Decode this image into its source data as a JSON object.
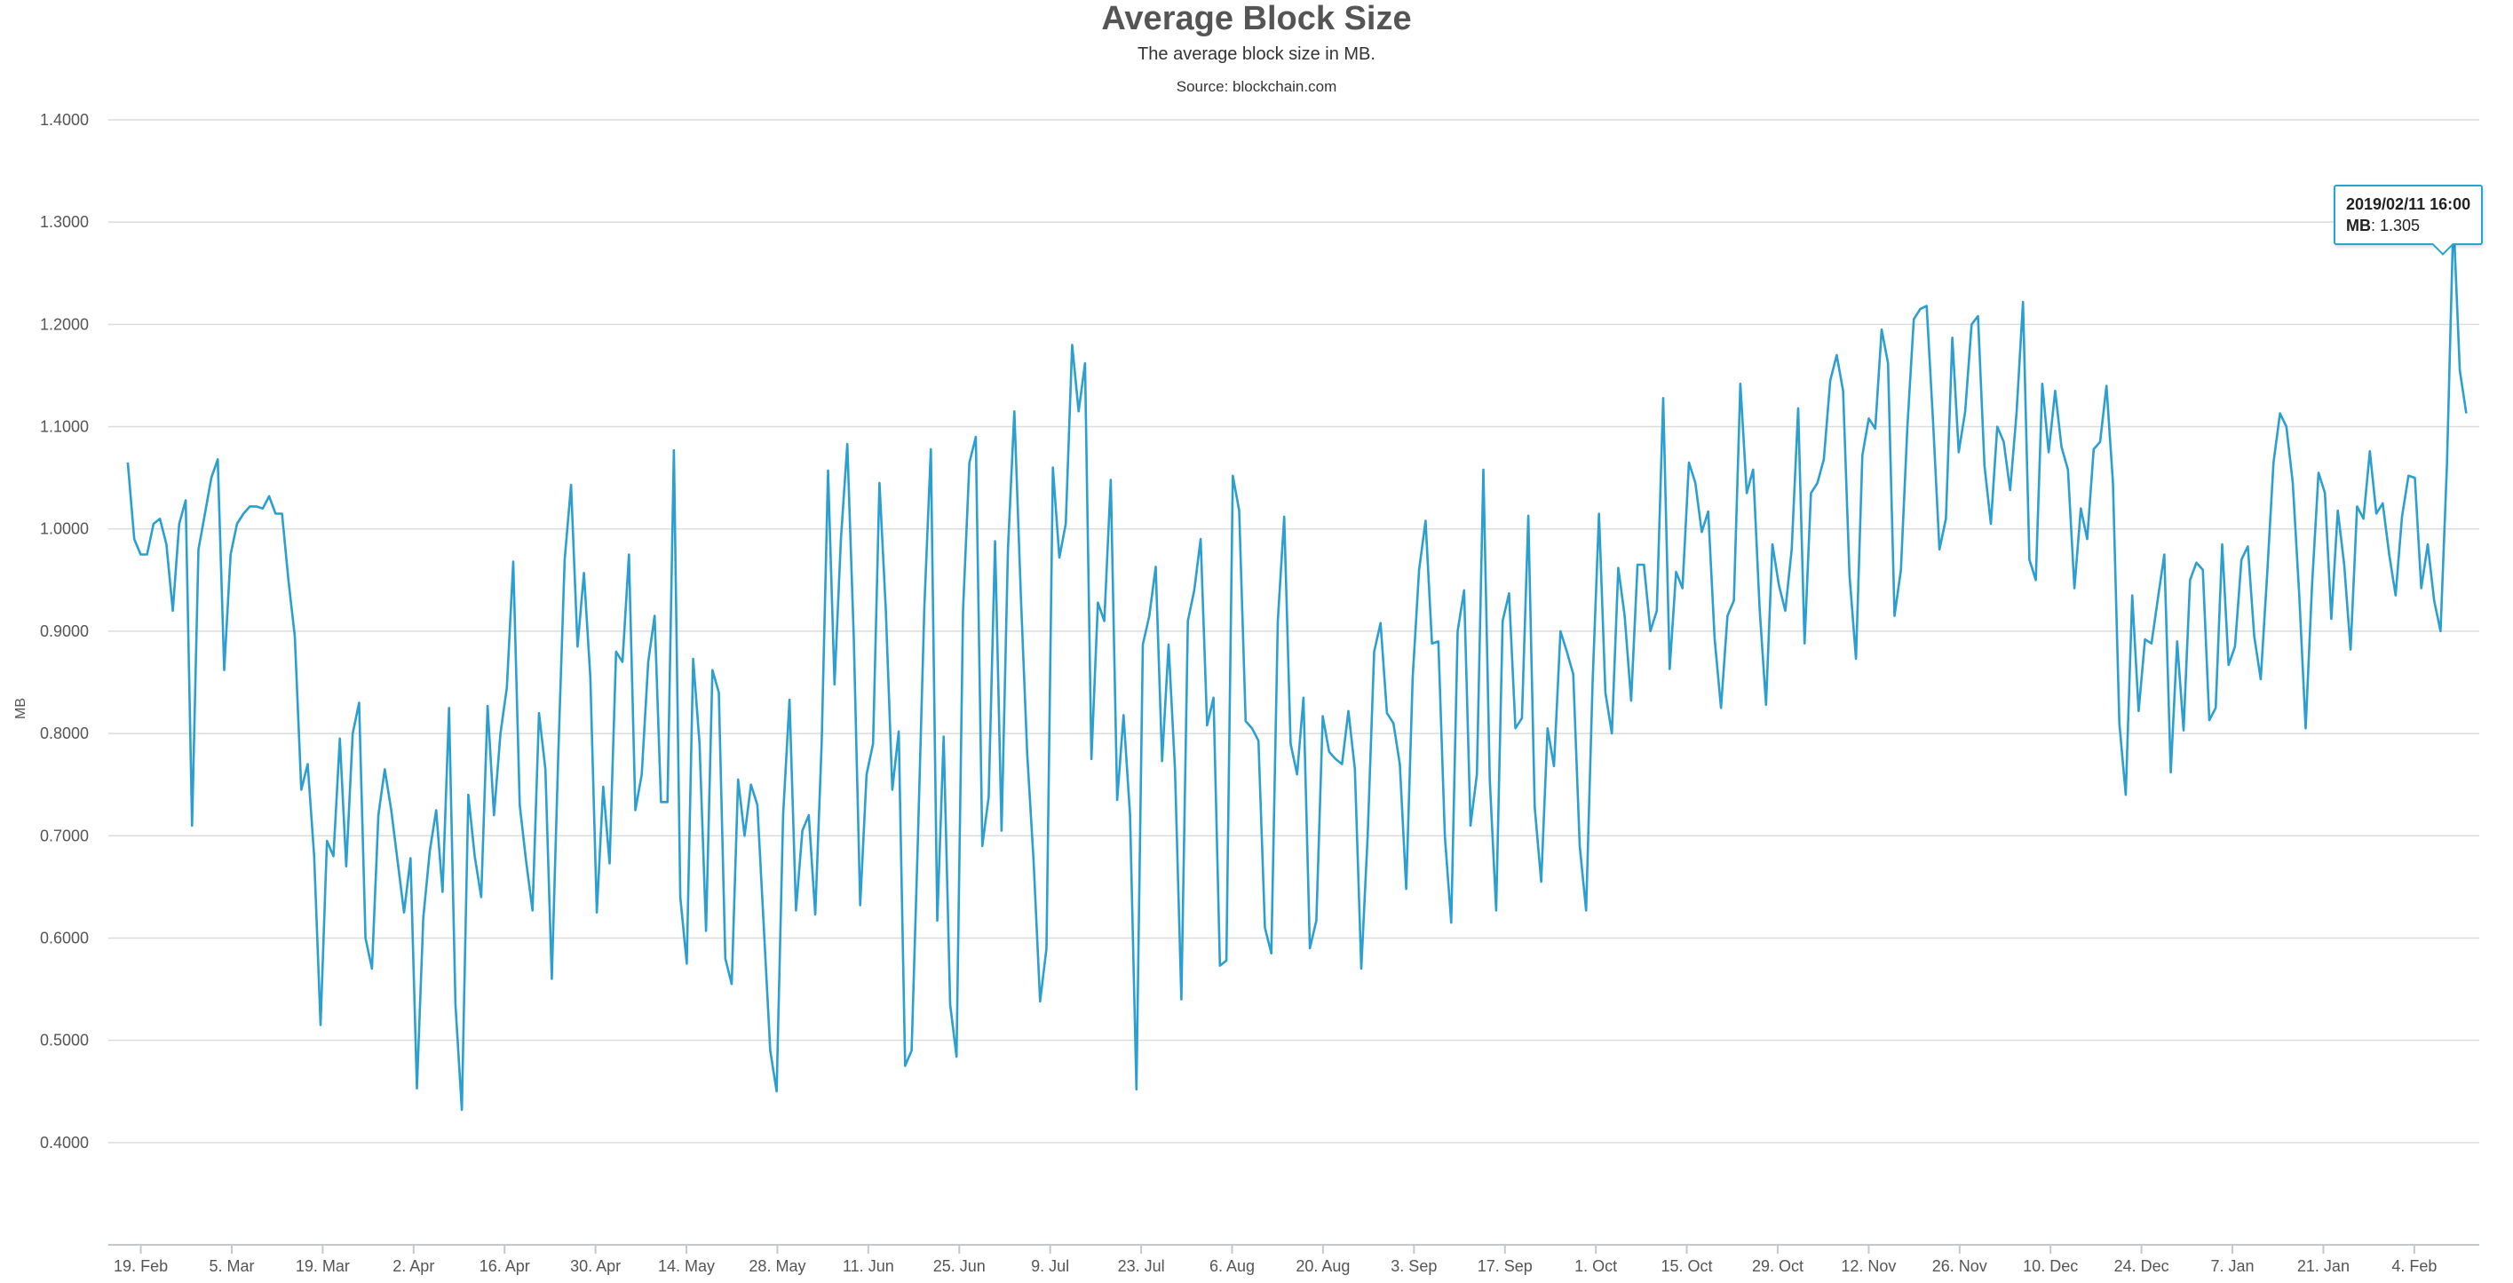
{
  "chart_data": {
    "type": "line",
    "title": "Average Block Size",
    "subtitle": "The average block size in MB.",
    "source": "Source: blockchain.com",
    "ylabel": "MB",
    "xlabel": "",
    "ylim": [
      0.3,
      1.4
    ],
    "yticks": [
      {
        "value": 0.4,
        "label": "0.4000"
      },
      {
        "value": 0.5,
        "label": "0.5000"
      },
      {
        "value": 0.6,
        "label": "0.6000"
      },
      {
        "value": 0.7,
        "label": "0.7000"
      },
      {
        "value": 0.8,
        "label": "0.8000"
      },
      {
        "value": 0.9,
        "label": "0.9000"
      },
      {
        "value": 1.0,
        "label": "1.0000"
      },
      {
        "value": 1.1,
        "label": "1.1000"
      },
      {
        "value": 1.2,
        "label": "1.2000"
      },
      {
        "value": 1.3,
        "label": "1.3000"
      },
      {
        "value": 1.4,
        "label": "1.4000"
      }
    ],
    "xlim": [
      "2018-02-14",
      "2019-02-14"
    ],
    "xticks": [
      {
        "date": "2018-02-19",
        "label": "19. Feb"
      },
      {
        "date": "2018-03-05",
        "label": "5. Mar"
      },
      {
        "date": "2018-03-19",
        "label": "19. Mar"
      },
      {
        "date": "2018-04-02",
        "label": "2. Apr"
      },
      {
        "date": "2018-04-16",
        "label": "16. Apr"
      },
      {
        "date": "2018-04-30",
        "label": "30. Apr"
      },
      {
        "date": "2018-05-14",
        "label": "14. May"
      },
      {
        "date": "2018-05-28",
        "label": "28. May"
      },
      {
        "date": "2018-06-11",
        "label": "11. Jun"
      },
      {
        "date": "2018-06-25",
        "label": "25. Jun"
      },
      {
        "date": "2018-07-09",
        "label": "9. Jul"
      },
      {
        "date": "2018-07-23",
        "label": "23. Jul"
      },
      {
        "date": "2018-08-06",
        "label": "6. Aug"
      },
      {
        "date": "2018-08-20",
        "label": "20. Aug"
      },
      {
        "date": "2018-09-03",
        "label": "3. Sep"
      },
      {
        "date": "2018-09-17",
        "label": "17. Sep"
      },
      {
        "date": "2018-10-01",
        "label": "1. Oct"
      },
      {
        "date": "2018-10-15",
        "label": "15. Oct"
      },
      {
        "date": "2018-10-29",
        "label": "29. Oct"
      },
      {
        "date": "2018-11-12",
        "label": "12. Nov"
      },
      {
        "date": "2018-11-26",
        "label": "26. Nov"
      },
      {
        "date": "2018-12-10",
        "label": "10. Dec"
      },
      {
        "date": "2018-12-24",
        "label": "24. Dec"
      },
      {
        "date": "2019-01-07",
        "label": "7. Jan"
      },
      {
        "date": "2019-01-21",
        "label": "21. Jan"
      },
      {
        "date": "2019-02-04",
        "label": "4. Feb"
      }
    ],
    "grid": true,
    "legend": "none",
    "line_color": "#2a9fd0",
    "x_start": "2018-02-17",
    "x_end": "2019-02-12",
    "series": [
      {
        "values": [
          1.065,
          0.99,
          0.975,
          0.975,
          1.005,
          1.01,
          0.985,
          0.92,
          1.005,
          1.028,
          0.71,
          0.98,
          1.015,
          1.05,
          1.068,
          0.862,
          0.975,
          1.005,
          1.015,
          1.022,
          1.022,
          1.02,
          1.032,
          1.015,
          1.015,
          0.95,
          0.895,
          0.745,
          0.77,
          0.68,
          0.515,
          0.695,
          0.68,
          0.795,
          0.67,
          0.8,
          0.83,
          0.6,
          0.57,
          0.72,
          0.765,
          0.725,
          0.675,
          0.625,
          0.678,
          0.453,
          0.62,
          0.685,
          0.725,
          0.645,
          0.825,
          0.535,
          0.432,
          0.74,
          0.68,
          0.64,
          0.827,
          0.72,
          0.8,
          0.845,
          0.968,
          0.73,
          0.675,
          0.627,
          0.82,
          0.765,
          0.56,
          0.78,
          0.97,
          1.043,
          0.885,
          0.957,
          0.855,
          0.625,
          0.748,
          0.673,
          0.88,
          0.87,
          0.975,
          0.725,
          0.76,
          0.87,
          0.915,
          0.733,
          0.733,
          1.077,
          0.64,
          0.575,
          0.873,
          0.79,
          0.607,
          0.862,
          0.84,
          0.58,
          0.555,
          0.755,
          0.7,
          0.75,
          0.73,
          0.61,
          0.49,
          0.45,
          0.72,
          0.833,
          0.627,
          0.705,
          0.72,
          0.623,
          0.79,
          1.057,
          0.848,
          0.99,
          1.083,
          0.893,
          0.632,
          0.76,
          0.79,
          1.045,
          0.92,
          0.745,
          0.802,
          0.475,
          0.49,
          0.7,
          0.925,
          1.078,
          0.617,
          0.797,
          0.535,
          0.484,
          0.92,
          1.065,
          1.09,
          0.69,
          0.738,
          0.988,
          0.705,
          0.98,
          1.115,
          0.935,
          0.78,
          0.675,
          0.538,
          0.59,
          1.06,
          0.972,
          1.005,
          1.18,
          1.115,
          1.162,
          0.775,
          0.928,
          0.91,
          1.048,
          0.735,
          0.818,
          0.72,
          0.452,
          0.887,
          0.915,
          0.963,
          0.773,
          0.887,
          0.765,
          0.54,
          0.91,
          0.94,
          0.99,
          0.808,
          0.835,
          0.573,
          0.578,
          1.052,
          1.018,
          0.812,
          0.805,
          0.793,
          0.61,
          0.585,
          0.91,
          1.012,
          0.79,
          0.76,
          0.835,
          0.59,
          0.617,
          0.817,
          0.782,
          0.775,
          0.77,
          0.822,
          0.765,
          0.57,
          0.7,
          0.88,
          0.908,
          0.82,
          0.81,
          0.77,
          0.648,
          0.855,
          0.96,
          1.008,
          0.888,
          0.89,
          0.7,
          0.615,
          0.9,
          0.94,
          0.71,
          0.76,
          1.058,
          0.755,
          0.627,
          0.91,
          0.937,
          0.805,
          0.815,
          1.013,
          0.728,
          0.655,
          0.805,
          0.768,
          0.9,
          0.88,
          0.858,
          0.69,
          0.627,
          0.85,
          1.015,
          0.84,
          0.8,
          0.962,
          0.915,
          0.832,
          0.965,
          0.965,
          0.9,
          0.92,
          1.128,
          0.863,
          0.958,
          0.942,
          1.065,
          1.045,
          0.997,
          1.017,
          0.893,
          0.825,
          0.915,
          0.93,
          1.142,
          1.035,
          1.058,
          0.922,
          0.828,
          0.985,
          0.945,
          0.92,
          0.98,
          1.118,
          0.888,
          1.035,
          1.045,
          1.068,
          1.145,
          1.17,
          1.135,
          0.955,
          0.873,
          1.072,
          1.108,
          1.098,
          1.195,
          1.162,
          0.915,
          0.96,
          1.1,
          1.205,
          1.215,
          1.218,
          1.105,
          0.98,
          1.01,
          1.187,
          1.075,
          1.115,
          1.2,
          1.208,
          1.062,
          1.005,
          1.1,
          1.085,
          1.038,
          1.113,
          1.222,
          0.97,
          0.95,
          1.142,
          1.075,
          1.135,
          1.08,
          1.058,
          0.942,
          1.02,
          0.99,
          1.078,
          1.085,
          1.14,
          1.045,
          0.81,
          0.74,
          0.935,
          0.822,
          0.892,
          0.888,
          0.932,
          0.975,
          0.762,
          0.89,
          0.803,
          0.95,
          0.967,
          0.96,
          0.813,
          0.825,
          0.985,
          0.867,
          0.885,
          0.97,
          0.983,
          0.895,
          0.853,
          0.955,
          1.065,
          1.113,
          1.1,
          1.045,
          0.935,
          0.805,
          0.945,
          1.055,
          1.035,
          0.912,
          1.018,
          0.965,
          0.882,
          1.022,
          1.01,
          1.076,
          1.015,
          1.025,
          0.975,
          0.935,
          1.012,
          1.052,
          1.05,
          0.942,
          0.985,
          0.93,
          0.9,
          1.065,
          1.305,
          1.155,
          1.113
        ]
      }
    ]
  },
  "tooltip": {
    "date": "2019/02/11 16:00",
    "label": "MB",
    "value": ": 1.305"
  }
}
